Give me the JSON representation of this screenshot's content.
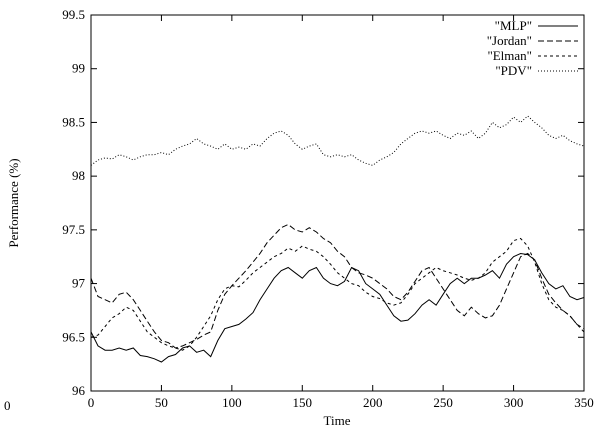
{
  "chart_data": {
    "type": "line",
    "title": "",
    "xlabel": "Time",
    "ylabel": "Performance (%)",
    "xlim": [
      0,
      350
    ],
    "ylim": [
      96,
      99.5
    ],
    "xticks": [
      0,
      50,
      100,
      150,
      200,
      250,
      300,
      350
    ],
    "yticks": [
      96,
      96.5,
      97,
      97.5,
      98,
      98.5,
      99,
      99.5
    ],
    "xtick_labels": [
      "0",
      "50",
      "100",
      "150",
      "200",
      "250",
      "300",
      "350"
    ],
    "ytick_labels": [
      "96",
      "96.5",
      "97",
      "97.5",
      "98",
      "98.5",
      "99",
      "99.5"
    ],
    "stray_label": "0",
    "grid": false,
    "legend_position": "top-right",
    "series": [
      {
        "name": "\"MLP\"",
        "dash": "",
        "x": [
          0,
          5,
          10,
          15,
          20,
          25,
          30,
          35,
          40,
          45,
          50,
          55,
          60,
          65,
          70,
          75,
          80,
          85,
          90,
          95,
          100,
          105,
          110,
          115,
          120,
          125,
          130,
          135,
          140,
          145,
          150,
          155,
          160,
          165,
          170,
          175,
          180,
          185,
          190,
          195,
          200,
          205,
          210,
          215,
          220,
          225,
          230,
          235,
          240,
          245,
          250,
          255,
          260,
          265,
          270,
          275,
          280,
          285,
          290,
          295,
          300,
          305,
          310,
          315,
          320,
          325,
          330,
          335,
          340,
          345,
          350
        ],
        "y": [
          96.55,
          96.42,
          96.38,
          96.38,
          96.4,
          96.38,
          96.4,
          96.33,
          96.32,
          96.3,
          96.27,
          96.32,
          96.34,
          96.4,
          96.42,
          96.36,
          96.38,
          96.32,
          96.47,
          96.58,
          96.6,
          96.62,
          96.67,
          96.73,
          96.85,
          96.95,
          97.05,
          97.12,
          97.15,
          97.1,
          97.05,
          97.12,
          97.15,
          97.05,
          97.0,
          96.98,
          97.02,
          97.15,
          97.12,
          97.0,
          96.95,
          96.9,
          96.8,
          96.7,
          96.65,
          96.66,
          96.72,
          96.8,
          96.85,
          96.8,
          96.9,
          97.0,
          97.05,
          97.0,
          97.05,
          97.05,
          97.08,
          97.12,
          97.05,
          97.18,
          97.25,
          97.28,
          97.27,
          97.22,
          97.1,
          97.0,
          96.95,
          96.98,
          96.88,
          96.85,
          96.87
        ]
      },
      {
        "name": "\"Jordan\"",
        "dash": "6,3",
        "x": [
          0,
          5,
          10,
          15,
          20,
          25,
          30,
          35,
          40,
          45,
          50,
          55,
          60,
          65,
          70,
          75,
          80,
          85,
          90,
          95,
          100,
          105,
          110,
          115,
          120,
          125,
          130,
          135,
          140,
          145,
          150,
          155,
          160,
          165,
          170,
          175,
          180,
          185,
          190,
          195,
          200,
          205,
          210,
          215,
          220,
          225,
          230,
          235,
          240,
          245,
          250,
          255,
          260,
          265,
          270,
          275,
          280,
          285,
          290,
          295,
          300,
          305,
          310,
          315,
          320,
          325,
          330,
          335,
          340,
          345,
          350
        ],
        "y": [
          97.05,
          96.88,
          96.85,
          96.82,
          96.9,
          96.92,
          96.85,
          96.75,
          96.65,
          96.55,
          96.47,
          96.45,
          96.4,
          96.42,
          96.45,
          96.48,
          96.52,
          96.55,
          96.75,
          96.9,
          96.98,
          97.05,
          97.12,
          97.2,
          97.28,
          97.38,
          97.45,
          97.52,
          97.55,
          97.5,
          97.48,
          97.52,
          97.48,
          97.42,
          97.38,
          97.3,
          97.25,
          97.15,
          97.1,
          97.08,
          97.05,
          97.0,
          96.95,
          96.88,
          96.85,
          96.92,
          97.02,
          97.12,
          97.15,
          97.05,
          96.95,
          96.85,
          96.75,
          96.7,
          96.78,
          96.72,
          96.68,
          96.7,
          96.8,
          96.95,
          97.1,
          97.25,
          97.28,
          97.22,
          97.05,
          96.9,
          96.82,
          96.75,
          96.7,
          96.62,
          96.58
        ]
      },
      {
        "name": "\"Elman\"",
        "dash": "3,3",
        "x": [
          0,
          5,
          10,
          15,
          20,
          25,
          30,
          35,
          40,
          45,
          50,
          55,
          60,
          65,
          70,
          75,
          80,
          85,
          90,
          95,
          100,
          105,
          110,
          115,
          120,
          125,
          130,
          135,
          140,
          145,
          150,
          155,
          160,
          165,
          170,
          175,
          180,
          185,
          190,
          195,
          200,
          205,
          210,
          215,
          220,
          225,
          230,
          235,
          240,
          245,
          250,
          255,
          260,
          265,
          270,
          275,
          280,
          285,
          290,
          295,
          300,
          305,
          310,
          315,
          320,
          325,
          330,
          335,
          340,
          345,
          350
        ],
        "y": [
          96.5,
          96.52,
          96.6,
          96.68,
          96.72,
          96.78,
          96.75,
          96.65,
          96.55,
          96.5,
          96.45,
          96.42,
          96.4,
          96.38,
          96.42,
          96.5,
          96.6,
          96.7,
          96.85,
          96.95,
          96.98,
          96.97,
          97.03,
          97.1,
          97.15,
          97.2,
          97.25,
          97.28,
          97.33,
          97.3,
          97.35,
          97.32,
          97.3,
          97.25,
          97.18,
          97.1,
          97.05,
          97.0,
          96.98,
          96.92,
          96.88,
          96.86,
          96.82,
          96.8,
          96.82,
          96.9,
          97.0,
          97.05,
          97.1,
          97.15,
          97.12,
          97.1,
          97.08,
          97.05,
          97.03,
          97.05,
          97.1,
          97.2,
          97.25,
          97.3,
          97.4,
          97.42,
          97.35,
          97.2,
          97.0,
          96.85,
          96.78,
          96.75,
          96.7,
          96.62,
          96.55
        ]
      },
      {
        "name": "\"PDV\"",
        "dash": "1,2",
        "x": [
          0,
          5,
          10,
          15,
          20,
          25,
          30,
          35,
          40,
          45,
          50,
          55,
          60,
          65,
          70,
          75,
          80,
          85,
          90,
          95,
          100,
          105,
          110,
          115,
          120,
          125,
          130,
          135,
          140,
          145,
          150,
          155,
          160,
          165,
          170,
          175,
          180,
          185,
          190,
          195,
          200,
          205,
          210,
          215,
          220,
          225,
          230,
          235,
          240,
          245,
          250,
          255,
          260,
          265,
          270,
          275,
          280,
          285,
          290,
          295,
          300,
          305,
          310,
          315,
          320,
          325,
          330,
          335,
          340,
          345,
          350
        ],
        "y": [
          98.1,
          98.15,
          98.17,
          98.16,
          98.2,
          98.18,
          98.15,
          98.18,
          98.2,
          98.2,
          98.22,
          98.2,
          98.25,
          98.28,
          98.3,
          98.35,
          98.3,
          98.28,
          98.25,
          98.3,
          98.25,
          98.27,
          98.25,
          98.3,
          98.28,
          98.35,
          98.4,
          98.42,
          98.38,
          98.3,
          98.25,
          98.28,
          98.3,
          98.2,
          98.18,
          98.2,
          98.18,
          98.2,
          98.15,
          98.12,
          98.1,
          98.15,
          98.18,
          98.22,
          98.3,
          98.35,
          98.4,
          98.42,
          98.4,
          98.42,
          98.38,
          98.35,
          98.4,
          98.38,
          98.42,
          98.35,
          98.4,
          98.5,
          98.45,
          98.48,
          98.55,
          98.5,
          98.56,
          98.5,
          98.45,
          98.38,
          98.35,
          98.38,
          98.33,
          98.3,
          98.28
        ]
      }
    ]
  }
}
